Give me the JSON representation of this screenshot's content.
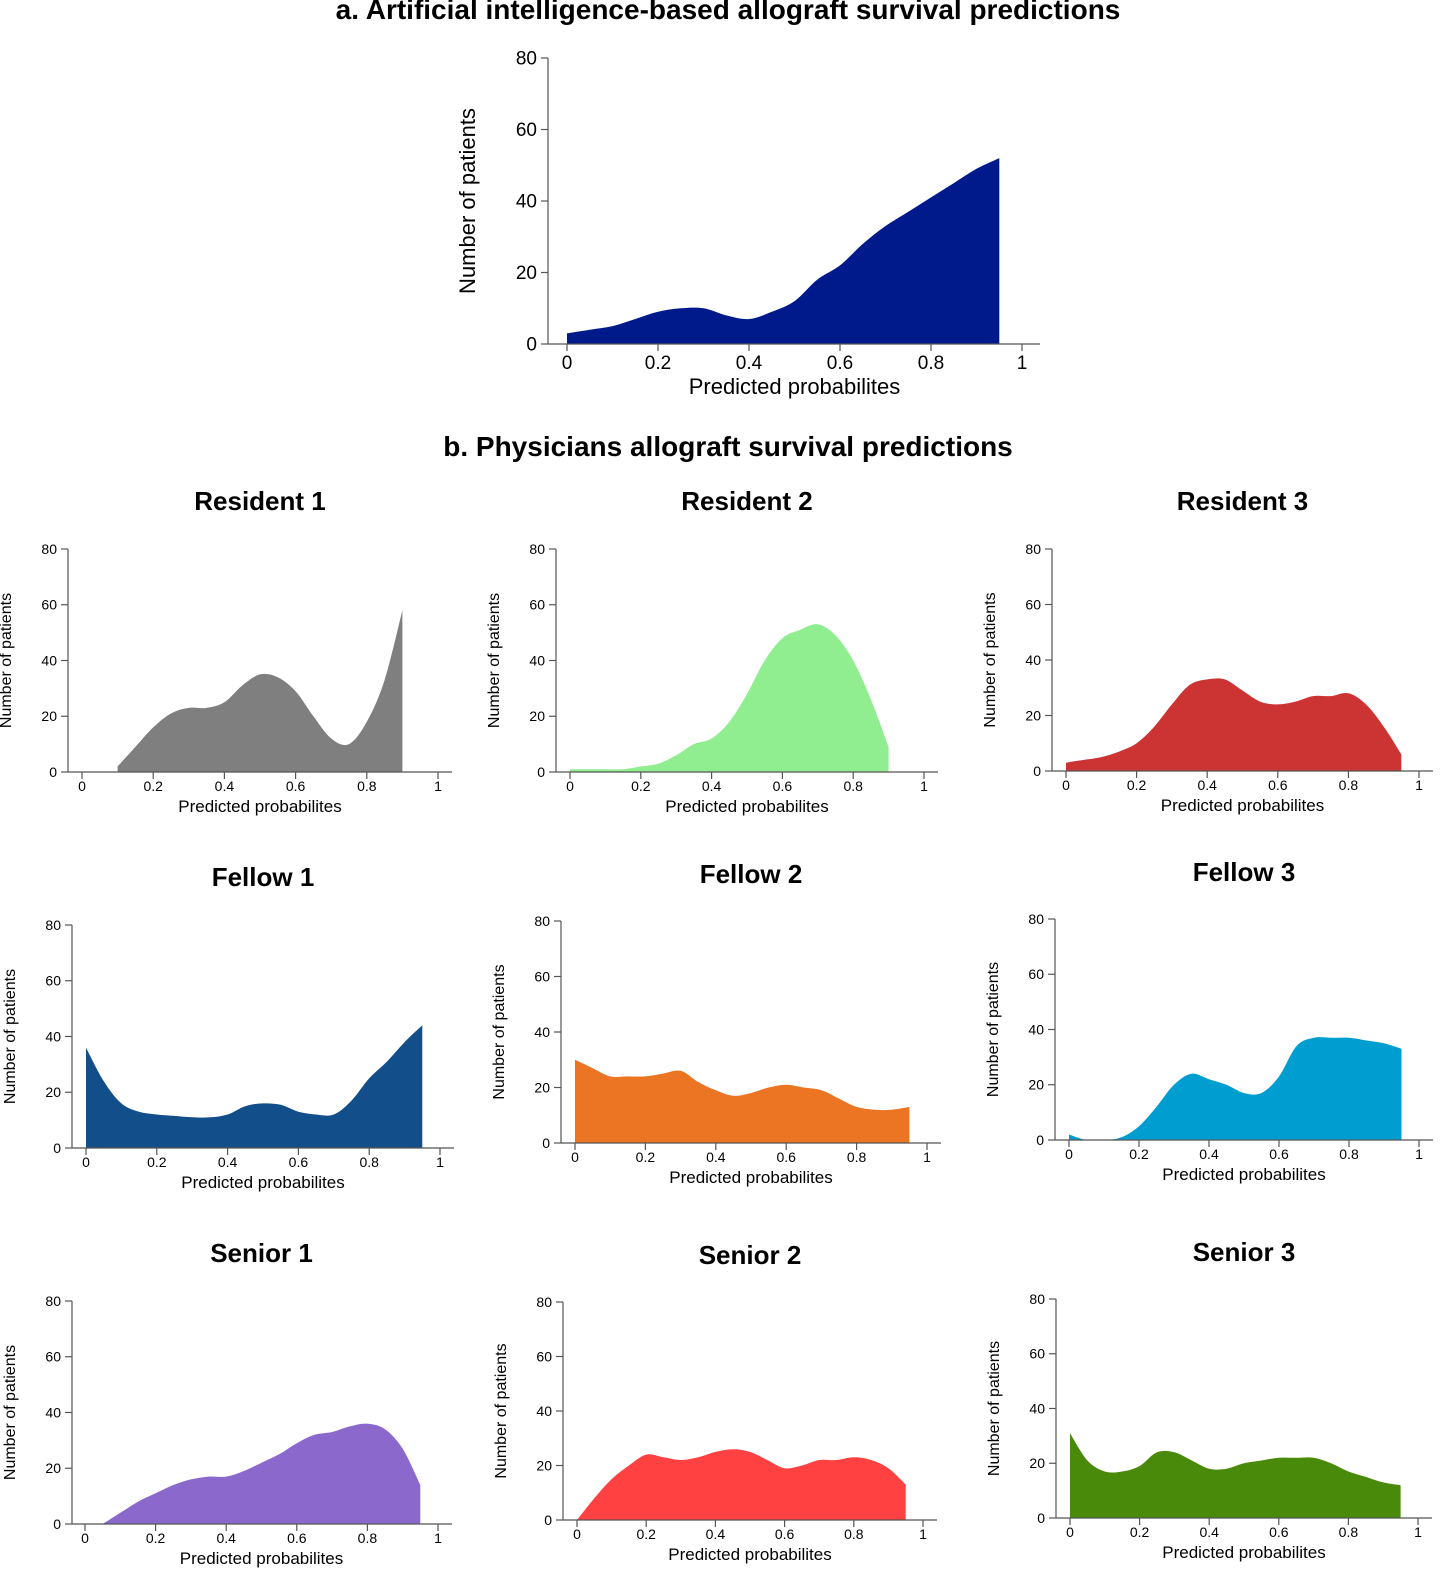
{
  "section_a_title": "a. Artificial intelligence-based allograft survival predictions",
  "section_b_title": "b. Physicians allograft survival predictions",
  "chart_data": [
    {
      "id": "ai",
      "type": "area",
      "title": "",
      "xlabel": "Predicted probabilites",
      "ylabel": "Number of patients",
      "xlim": [
        0,
        1
      ],
      "ylim": [
        0,
        80
      ],
      "xticks": [
        "0",
        "0.2",
        "0.4",
        "0.6",
        "0.8",
        "1"
      ],
      "yticks": [
        "0",
        "20",
        "40",
        "60",
        "80"
      ],
      "color": "#001A8C",
      "x": [
        0,
        0.05,
        0.1,
        0.15,
        0.2,
        0.25,
        0.3,
        0.35,
        0.4,
        0.45,
        0.5,
        0.55,
        0.6,
        0.65,
        0.7,
        0.75,
        0.8,
        0.85,
        0.9,
        0.95
      ],
      "y": [
        3,
        4,
        5,
        7,
        9,
        10,
        10,
        8,
        7,
        9,
        12,
        18,
        22,
        28,
        33,
        37,
        41,
        45,
        49,
        52
      ]
    },
    {
      "id": "resident-1",
      "type": "area",
      "title": "Resident 1",
      "xlabel": "Predicted probabilites",
      "ylabel": "Number of patients",
      "xlim": [
        0,
        1
      ],
      "ylim": [
        0,
        80
      ],
      "xticks": [
        "0",
        "0.2",
        "0.4",
        "0.6",
        "0.8",
        "1"
      ],
      "yticks": [
        "0",
        "20",
        "40",
        "60",
        "80"
      ],
      "color": "#7F7F7F",
      "x": [
        0.1,
        0.15,
        0.2,
        0.25,
        0.3,
        0.35,
        0.4,
        0.45,
        0.5,
        0.55,
        0.6,
        0.65,
        0.7,
        0.75,
        0.8,
        0.85,
        0.9
      ],
      "y": [
        2,
        9,
        16,
        21,
        23,
        23,
        25,
        31,
        35,
        34,
        29,
        20,
        12,
        10,
        18,
        33,
        58
      ]
    },
    {
      "id": "resident-2",
      "type": "area",
      "title": "Resident 2",
      "xlabel": "Predicted probabilites",
      "ylabel": "Number of patients",
      "xlim": [
        0,
        1
      ],
      "ylim": [
        0,
        80
      ],
      "xticks": [
        "0",
        "0.2",
        "0.4",
        "0.6",
        "0.8",
        "1"
      ],
      "yticks": [
        "0",
        "20",
        "40",
        "60",
        "80"
      ],
      "color": "#90EE90",
      "x": [
        0,
        0.05,
        0.1,
        0.15,
        0.2,
        0.25,
        0.3,
        0.35,
        0.4,
        0.45,
        0.5,
        0.55,
        0.6,
        0.65,
        0.7,
        0.75,
        0.8,
        0.85,
        0.9
      ],
      "y": [
        1,
        1,
        1,
        1,
        2,
        3,
        6,
        10,
        12,
        18,
        28,
        40,
        48,
        51,
        53,
        49,
        40,
        26,
        9
      ]
    },
    {
      "id": "resident-3",
      "type": "area",
      "title": "Resident 3",
      "xlabel": "Predicted probabilites",
      "ylabel": "Number of patients",
      "xlim": [
        0,
        1
      ],
      "ylim": [
        0,
        80
      ],
      "xticks": [
        "0",
        "0.2",
        "0.4",
        "0.6",
        "0.8",
        "1"
      ],
      "yticks": [
        "0",
        "20",
        "40",
        "60",
        "80"
      ],
      "color": "#CC3333",
      "x": [
        0,
        0.05,
        0.1,
        0.15,
        0.2,
        0.25,
        0.3,
        0.35,
        0.4,
        0.45,
        0.5,
        0.55,
        0.6,
        0.65,
        0.7,
        0.75,
        0.8,
        0.85,
        0.9,
        0.95
      ],
      "y": [
        3,
        4,
        5,
        7,
        10,
        16,
        24,
        31,
        33,
        33,
        29,
        25,
        24,
        25,
        27,
        27,
        28,
        24,
        16,
        6
      ]
    },
    {
      "id": "fellow-1",
      "type": "area",
      "title": "Fellow 1",
      "xlabel": "Predicted probabilites",
      "ylabel": "Number of patients",
      "xlim": [
        0,
        1
      ],
      "ylim": [
        0,
        80
      ],
      "xticks": [
        "0",
        "0.2",
        "0.4",
        "0.6",
        "0.8",
        "1"
      ],
      "yticks": [
        "0",
        "20",
        "40",
        "60",
        "80"
      ],
      "color": "#114E8A",
      "x": [
        0,
        0.05,
        0.1,
        0.15,
        0.2,
        0.25,
        0.3,
        0.35,
        0.4,
        0.45,
        0.5,
        0.55,
        0.6,
        0.65,
        0.7,
        0.75,
        0.8,
        0.85,
        0.9,
        0.95
      ],
      "y": [
        36,
        24,
        16,
        13,
        12,
        11.5,
        11,
        11,
        12,
        15,
        16,
        15.5,
        13,
        12,
        12,
        17,
        25,
        31,
        38,
        44
      ]
    },
    {
      "id": "fellow-2",
      "type": "area",
      "title": "Fellow 2",
      "xlabel": "Predicted probabilites",
      "ylabel": "Number of patients",
      "xlim": [
        0,
        1
      ],
      "ylim": [
        0,
        80
      ],
      "xticks": [
        "0",
        "0.2",
        "0.4",
        "0.6",
        "0.8",
        "1"
      ],
      "yticks": [
        "0",
        "20",
        "40",
        "60",
        "80"
      ],
      "color": "#EC7524",
      "x": [
        0,
        0.05,
        0.1,
        0.15,
        0.2,
        0.25,
        0.3,
        0.35,
        0.4,
        0.45,
        0.5,
        0.55,
        0.6,
        0.65,
        0.7,
        0.75,
        0.8,
        0.85,
        0.9,
        0.95
      ],
      "y": [
        30,
        27,
        24,
        24,
        24,
        25,
        26,
        22,
        19,
        17,
        18,
        20,
        21,
        20,
        19,
        16,
        13,
        12,
        12,
        13
      ]
    },
    {
      "id": "fellow-3",
      "type": "area",
      "title": "Fellow 3",
      "xlabel": "Predicted probabilites",
      "ylabel": "Number of patients",
      "xlim": [
        0,
        1
      ],
      "ylim": [
        0,
        80
      ],
      "xticks": [
        "0",
        "0.2",
        "0.4",
        "0.6",
        "0.8",
        "1"
      ],
      "yticks": [
        "0",
        "20",
        "40",
        "60",
        "80"
      ],
      "color": "#009DD1",
      "x": [
        0,
        0.05,
        0.1,
        0.15,
        0.2,
        0.25,
        0.3,
        0.35,
        0.4,
        0.45,
        0.5,
        0.55,
        0.6,
        0.65,
        0.7,
        0.75,
        0.8,
        0.85,
        0.9,
        0.95
      ],
      "y": [
        2,
        0,
        0,
        1,
        5,
        12,
        20,
        24,
        22,
        20,
        17,
        17,
        23,
        34,
        37,
        37,
        37,
        36,
        35,
        33
      ]
    },
    {
      "id": "senior-1",
      "type": "area",
      "title": "Senior 1",
      "xlabel": "Predicted probabilites",
      "ylabel": "Number of patients",
      "xlim": [
        0,
        1
      ],
      "ylim": [
        0,
        80
      ],
      "xticks": [
        "0",
        "0.2",
        "0.4",
        "0.6",
        "0.8",
        "1"
      ],
      "yticks": [
        "0",
        "20",
        "40",
        "60",
        "80"
      ],
      "color": "#8B69CC",
      "x": [
        0.05,
        0.1,
        0.15,
        0.2,
        0.25,
        0.3,
        0.35,
        0.4,
        0.45,
        0.5,
        0.55,
        0.6,
        0.65,
        0.7,
        0.75,
        0.8,
        0.85,
        0.9,
        0.95
      ],
      "y": [
        0,
        4,
        8,
        11,
        14,
        16,
        17,
        17,
        19,
        22,
        25,
        29,
        32,
        33,
        35,
        36,
        34,
        27,
        14
      ]
    },
    {
      "id": "senior-2",
      "type": "area",
      "title": "Senior 2",
      "xlabel": "Predicted probabilites",
      "ylabel": "Number of patients",
      "xlim": [
        0,
        1
      ],
      "ylim": [
        0,
        80
      ],
      "xticks": [
        "0",
        "0.2",
        "0.4",
        "0.6",
        "0.8",
        "1"
      ],
      "yticks": [
        "0",
        "20",
        "40",
        "60",
        "80"
      ],
      "color": "#FF4141",
      "x": [
        0,
        0.05,
        0.1,
        0.15,
        0.2,
        0.25,
        0.3,
        0.35,
        0.4,
        0.45,
        0.5,
        0.55,
        0.6,
        0.65,
        0.7,
        0.75,
        0.8,
        0.85,
        0.9,
        0.95
      ],
      "y": [
        0,
        8,
        15,
        20,
        24,
        23,
        22,
        23,
        25,
        26,
        25,
        22,
        19,
        20,
        22,
        22,
        23,
        22,
        19,
        13
      ]
    },
    {
      "id": "senior-3",
      "type": "area",
      "title": "Senior 3",
      "xlabel": "Predicted probabilites",
      "ylabel": "Number of patients",
      "xlim": [
        0,
        1
      ],
      "ylim": [
        0,
        80
      ],
      "xticks": [
        "0",
        "0.2",
        "0.4",
        "0.6",
        "0.8",
        "1"
      ],
      "yticks": [
        "0",
        "20",
        "40",
        "60",
        "80"
      ],
      "color": "#4A8A0A",
      "x": [
        0,
        0.05,
        0.1,
        0.15,
        0.2,
        0.25,
        0.3,
        0.35,
        0.4,
        0.45,
        0.5,
        0.55,
        0.6,
        0.65,
        0.7,
        0.75,
        0.8,
        0.85,
        0.9,
        0.95
      ],
      "y": [
        31,
        21,
        17,
        17,
        19,
        24,
        24,
        21,
        18,
        18,
        20,
        21,
        22,
        22,
        22,
        20,
        17,
        15,
        13,
        12
      ]
    }
  ]
}
